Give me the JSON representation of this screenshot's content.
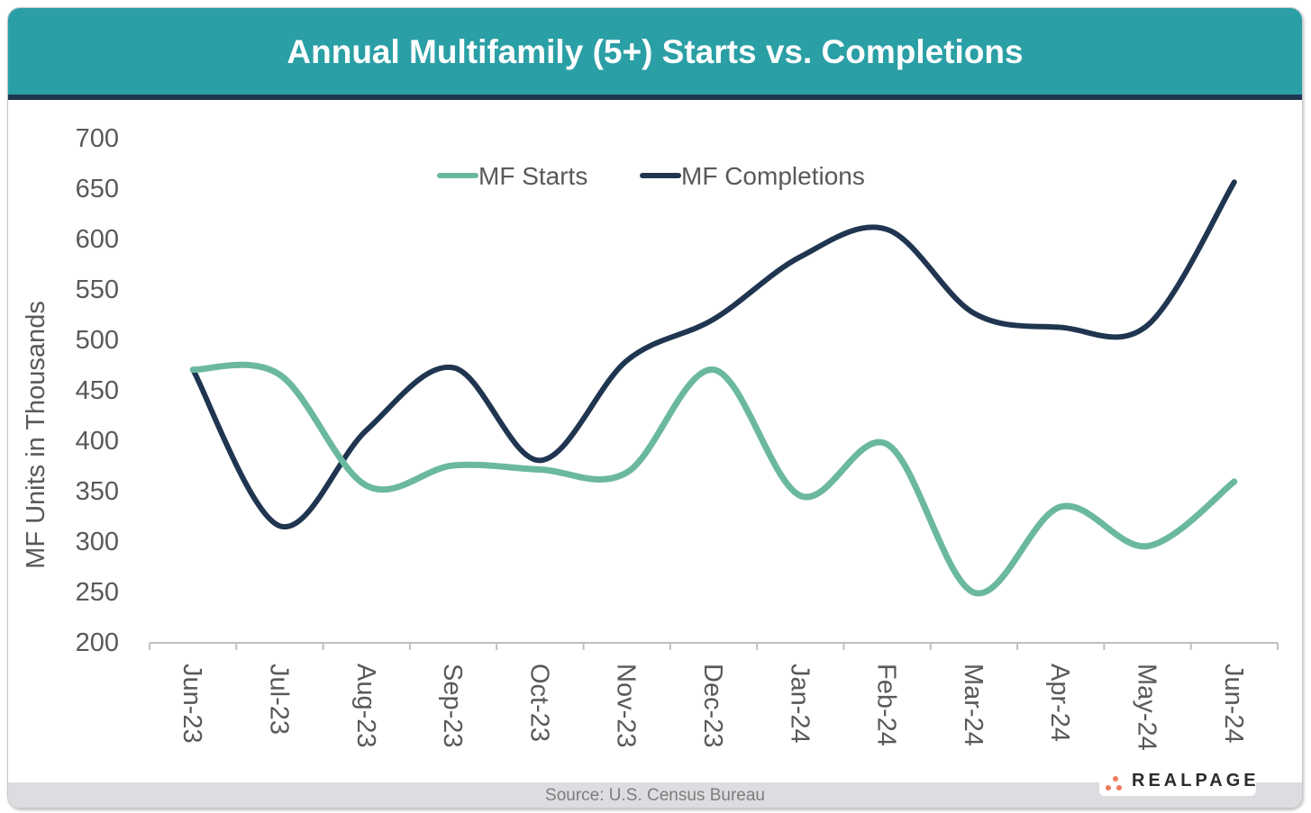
{
  "chart_data": {
    "type": "line",
    "title": "Annual Multifamily (5+) Starts vs. Completions",
    "ylabel": "MF Units in Thousands",
    "xlabel": "",
    "ylim": [
      200,
      700
    ],
    "yticks": [
      "200",
      "250",
      "300",
      "350",
      "400",
      "450",
      "500",
      "550",
      "600",
      "650",
      "700"
    ],
    "categories": [
      "Jun-23",
      "Jul-23",
      "Aug-23",
      "Sep-23",
      "Oct-23",
      "Nov-23",
      "Dec-23",
      "Jan-24",
      "Feb-24",
      "Mar-24",
      "Apr-24",
      "May-24",
      "Jun-24"
    ],
    "legend_position": "top",
    "grid": false,
    "smooth": true,
    "series": [
      {
        "name": "MF Starts",
        "color": "#6bb8a0",
        "values": [
          470,
          465,
          355,
          375,
          371,
          368,
          470,
          345,
          396,
          249,
          334,
          295,
          359
        ]
      },
      {
        "name": "MF Completions",
        "color": "#1f3550",
        "values": [
          470,
          315,
          410,
          472,
          380,
          479,
          520,
          582,
          609,
          526,
          512,
          514,
          656
        ]
      }
    ]
  },
  "source": "Source: U.S. Census Bureau",
  "logo": "REALPAGE",
  "colors": {
    "header": "#2a9fa5",
    "header_stripe": "#1f3550",
    "footer": "#dcdde0",
    "logo_dots": "#ef7b5b"
  }
}
